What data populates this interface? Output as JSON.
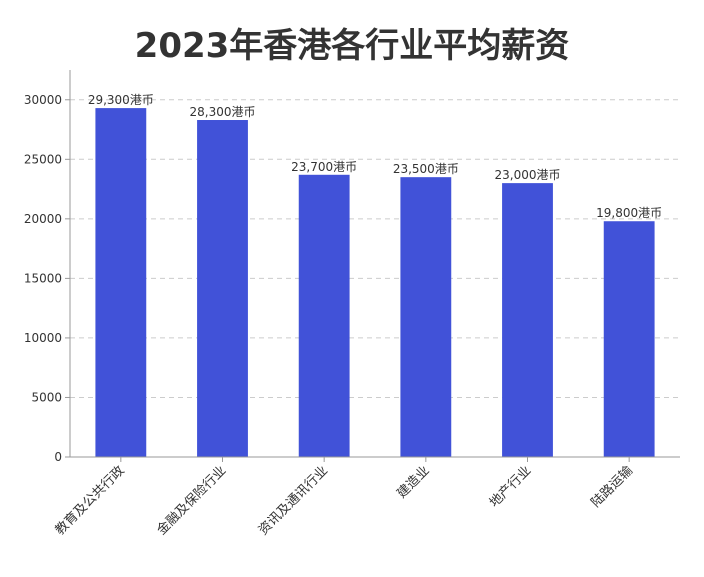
{
  "chart_data": {
    "type": "bar",
    "title": "2023年香港各行业平均薪资",
    "categories": [
      "教育及公共行政",
      "金融及保险行业",
      "资讯及通讯行业",
      "建造业",
      "地产行业",
      "陆路运输"
    ],
    "values": [
      29300,
      28300,
      23700,
      23500,
      23000,
      19800
    ],
    "data_labels": [
      "29,300港币",
      "28,300港币",
      "23,700港币",
      "23,500港币",
      "23,000港币",
      "19,800港币"
    ],
    "ylim": [
      0,
      32500
    ],
    "yticks": [
      0,
      5000,
      10000,
      15000,
      20000,
      25000,
      30000
    ],
    "xlabel": "",
    "ylabel": "",
    "grid": "y-dashed",
    "colors": {
      "bar": "#4152d8",
      "grid": "#cccccc",
      "axis": "#999999"
    }
  }
}
